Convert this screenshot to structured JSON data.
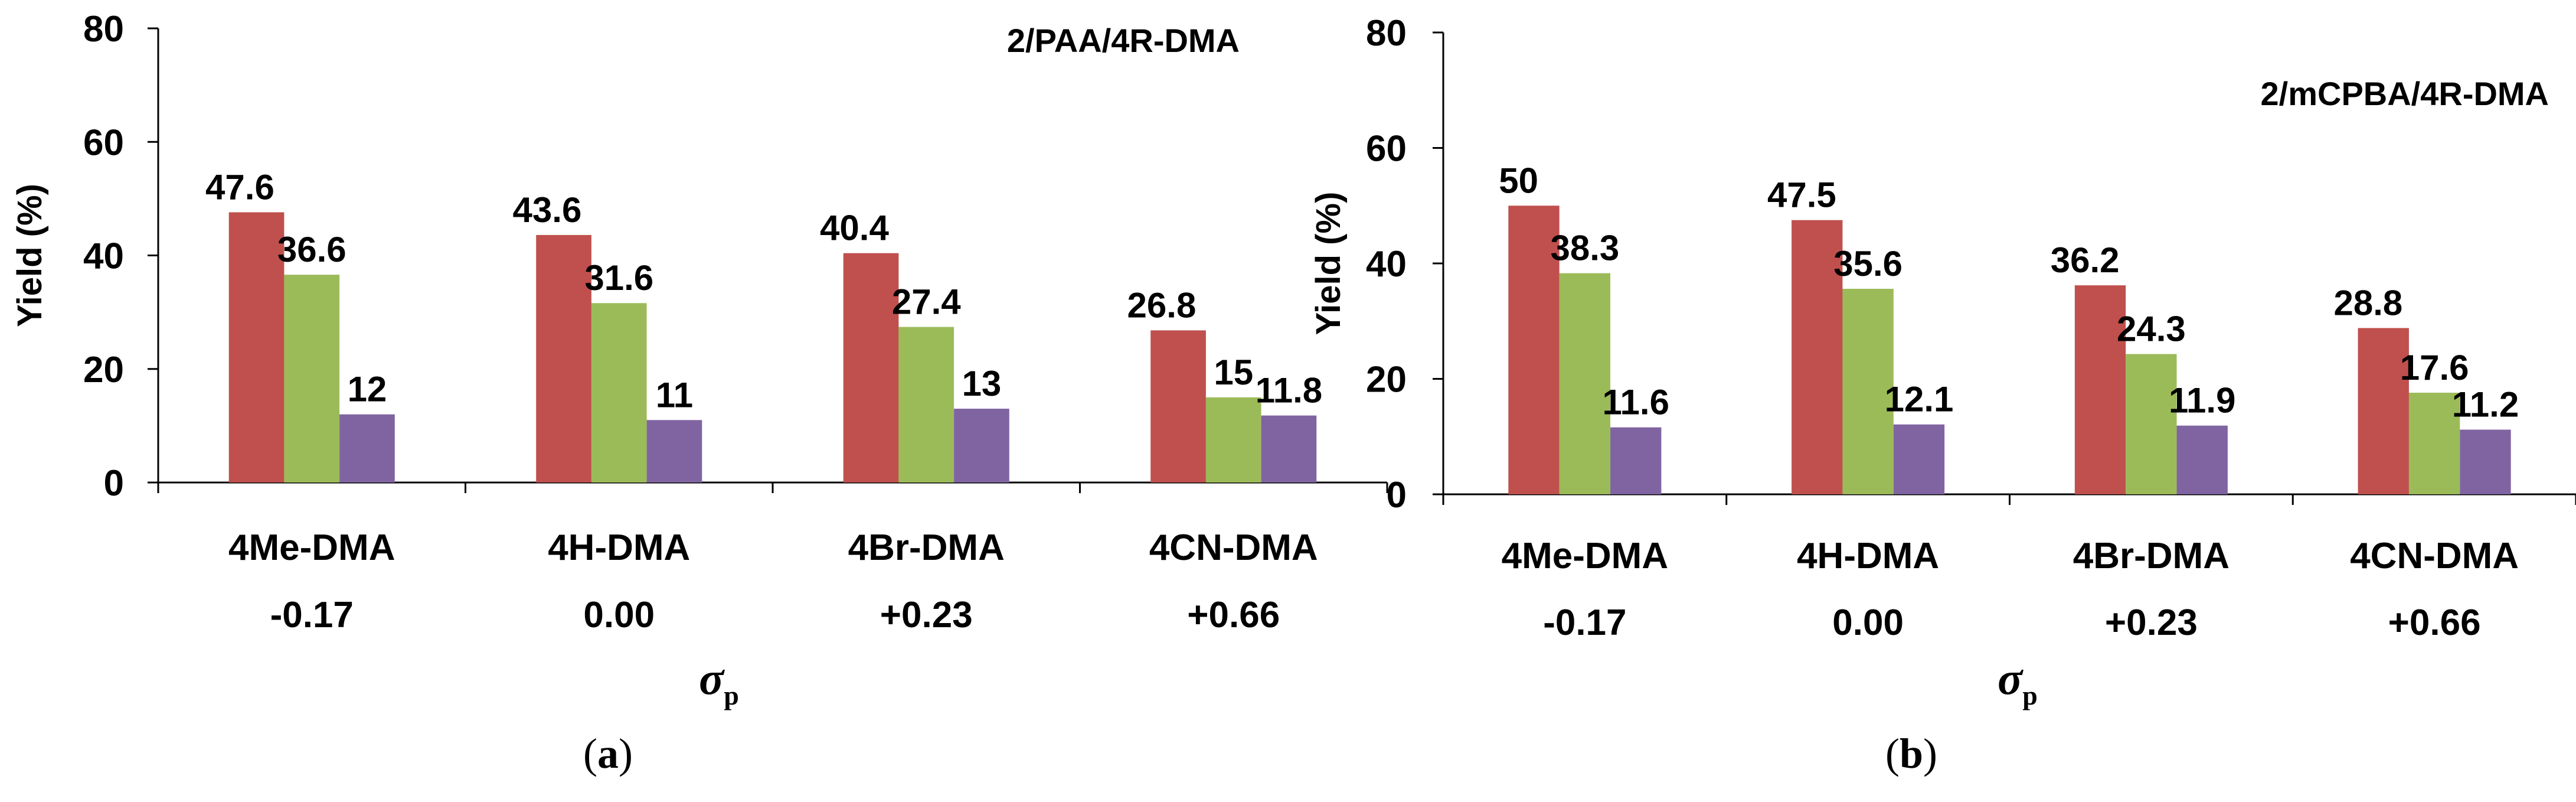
{
  "chart_data": [
    {
      "type": "bar",
      "title": "2/PAA/4R-DMA",
      "panel_label": "a",
      "ylabel": "Yield (%)",
      "xlabel": "σ",
      "xlabel_sub": "p",
      "ylim": [
        0,
        80
      ],
      "yticks": [
        "0",
        "20",
        "40",
        "60",
        "80"
      ],
      "categories": [
        "4Me-DMA",
        "4H-DMA",
        "4Br-DMA",
        "4CN-DMA"
      ],
      "sigma_values": [
        "-0.17",
        "0.00",
        "+0.23",
        "+0.66"
      ],
      "series": [
        {
          "name": "series 1",
          "values": [
            47.6,
            43.6,
            40.4,
            26.8
          ],
          "labels": [
            "47.6",
            "43.6",
            "40.4",
            "26.8"
          ]
        },
        {
          "name": "series 2",
          "values": [
            36.6,
            31.6,
            27.4,
            15
          ],
          "labels": [
            "36.6",
            "31.6",
            "27.4",
            "15"
          ]
        },
        {
          "name": "series 3",
          "values": [
            12,
            11,
            13,
            11.8
          ],
          "labels": [
            "12",
            "11",
            "13",
            "11.8"
          ]
        }
      ]
    },
    {
      "type": "bar",
      "title": "2/mCPBA/4R-DMA",
      "panel_label": "b",
      "ylabel": "Yield (%)",
      "xlabel": "σ",
      "xlabel_sub": "p",
      "ylim": [
        0,
        80
      ],
      "yticks": [
        "0",
        "20",
        "40",
        "60",
        "80"
      ],
      "categories": [
        "4Me-DMA",
        "4H-DMA",
        "4Br-DMA",
        "4CN-DMA"
      ],
      "sigma_values": [
        "-0.17",
        "0.00",
        "+0.23",
        "+0.66"
      ],
      "series": [
        {
          "name": "series 1",
          "values": [
            50,
            47.5,
            36.2,
            28.8
          ],
          "labels": [
            "50",
            "47.5",
            "36.2",
            "28.8"
          ]
        },
        {
          "name": "series 2",
          "values": [
            38.3,
            35.6,
            24.3,
            17.6
          ],
          "labels": [
            "38.3",
            "35.6",
            "24.3",
            "17.6"
          ]
        },
        {
          "name": "series 3",
          "values": [
            11.6,
            12.1,
            11.9,
            11.2
          ],
          "labels": [
            "11.6",
            "12.1",
            "11.9",
            "11.2"
          ]
        }
      ]
    }
  ],
  "colors": {
    "series": [
      "#c0504d",
      "#9bbb59",
      "#8064a2"
    ],
    "axis": "#000000"
  }
}
